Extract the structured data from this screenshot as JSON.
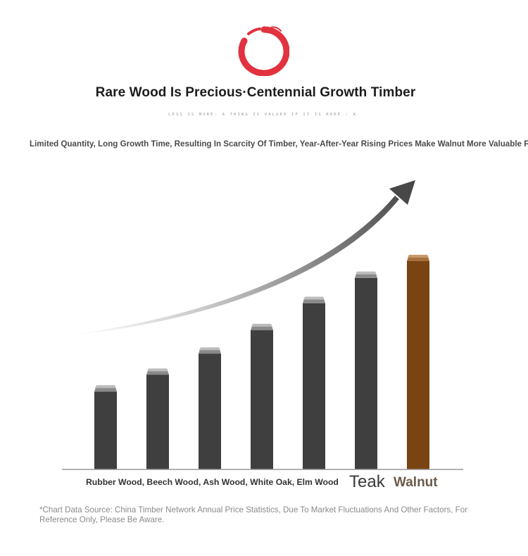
{
  "header": {
    "title": "Rare Wood Is Precious·Centennial Growth Timber",
    "tagline": "LESS IS MORE: A THING IS VALUED IF IT IS RARE.: A",
    "description": "Limited Quantity, Long Growth Time, Resulting In Scarcity Of Timber, Year-After-Year Rising Prices Make Walnut More Valuable For C"
  },
  "colors": {
    "logo": "#e2323f",
    "bar": "#3f3f3f",
    "highlight_bar": "#7a4312",
    "arrow": "#4a4a4a"
  },
  "chart_data": {
    "type": "bar",
    "category_label_text": "Rubber Wood, Beech Wood, Ash Wood, White Oak, Elm Wood",
    "labeled_categories": [
      "Teak",
      "Walnut"
    ],
    "values": [
      1.0,
      1.2,
      1.45,
      1.73,
      2.05,
      2.35,
      2.55
    ],
    "highlight_index": 6,
    "ylim": [
      0,
      2.6
    ],
    "value_axis_shown": false,
    "trend_arrow": true
  },
  "footnote": "*Chart Data Source: China Timber Network Annual Price Statistics, Due To Market Fluctuations And Other Factors, For Reference Only, Please Be Aware."
}
